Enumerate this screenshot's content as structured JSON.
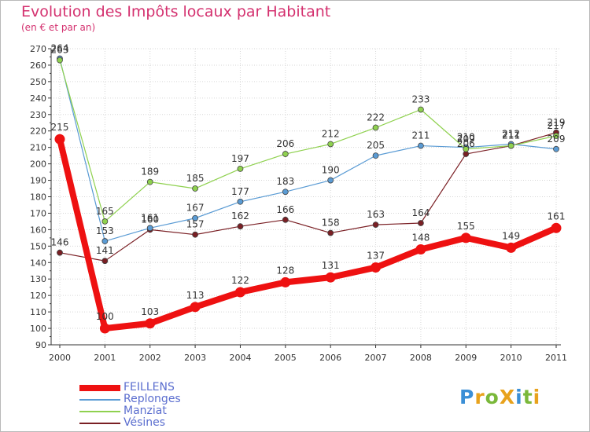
{
  "header": {
    "title": "Evolution des Impôts locaux par Habitant",
    "subtitle": "(en € et par an)"
  },
  "logo": {
    "text": "ProXiti",
    "letters": [
      {
        "ch": "P",
        "color": "#3b8fd6"
      },
      {
        "ch": "r",
        "color": "#e8a21c"
      },
      {
        "ch": "o",
        "color": "#7ab83a"
      },
      {
        "ch": "X",
        "color": "#e8a21c"
      },
      {
        "ch": "i",
        "color": "#3b8fd6"
      },
      {
        "ch": "t",
        "color": "#7ab83a"
      },
      {
        "ch": "i",
        "color": "#e8a21c"
      }
    ]
  },
  "chart_data": {
    "type": "line",
    "title": "Evolution des Impôts locaux par Habitant",
    "subtitle": "(en € et par an)",
    "xlabel": "",
    "ylabel": "",
    "x": [
      "2000",
      "2001",
      "2002",
      "2003",
      "2004",
      "2005",
      "2006",
      "2007",
      "2008",
      "2009",
      "2010",
      "2011"
    ],
    "ylim": [
      90,
      270
    ],
    "yticks": [
      90,
      100,
      110,
      120,
      130,
      140,
      150,
      160,
      170,
      180,
      190,
      200,
      210,
      220,
      230,
      240,
      250,
      260,
      270
    ],
    "grid": true,
    "legend_position": "bottom-left",
    "series": [
      {
        "name": "Vésines",
        "color": "#7a1f24",
        "values": [
          146,
          141,
          160,
          157,
          162,
          166,
          158,
          163,
          164,
          206,
          211,
          219
        ],
        "labels": [
          "146",
          "141",
          "160",
          "157",
          "162",
          "166",
          "158",
          "163",
          "164",
          "206",
          "211",
          "219"
        ]
      },
      {
        "name": "Replonges",
        "color": "#5a9bd4",
        "values": [
          264,
          153,
          161,
          167,
          177,
          183,
          190,
          205,
          211,
          210,
          212,
          209
        ],
        "labels": [
          "264",
          "153",
          "161",
          "167",
          "177",
          "183",
          "190",
          "205",
          "211",
          "210",
          "212",
          "209"
        ]
      },
      {
        "name": "Manziat",
        "color": "#8fd14f",
        "values": [
          263,
          165,
          189,
          185,
          197,
          206,
          212,
          222,
          233,
          209,
          211,
          217
        ],
        "labels": [
          "263",
          "165",
          "189",
          "185",
          "197",
          "206",
          "212",
          "222",
          "233",
          "209",
          "211",
          "217"
        ]
      },
      {
        "name": "FEILLENS",
        "color": "#ee1111",
        "values": [
          215,
          100,
          103,
          113,
          122,
          128,
          131,
          137,
          148,
          155,
          149,
          161
        ],
        "labels": [
          "215",
          "100",
          "103",
          "113",
          "122",
          "128",
          "131",
          "137",
          "148",
          "155",
          "149",
          "161"
        ]
      }
    ],
    "legend": [
      {
        "name": "FEILLENS",
        "color": "#ee1111"
      },
      {
        "name": "Replonges",
        "color": "#5a9bd4"
      },
      {
        "name": "Manziat",
        "color": "#8fd14f"
      },
      {
        "name": "Vésines",
        "color": "#7a1f24"
      }
    ]
  }
}
